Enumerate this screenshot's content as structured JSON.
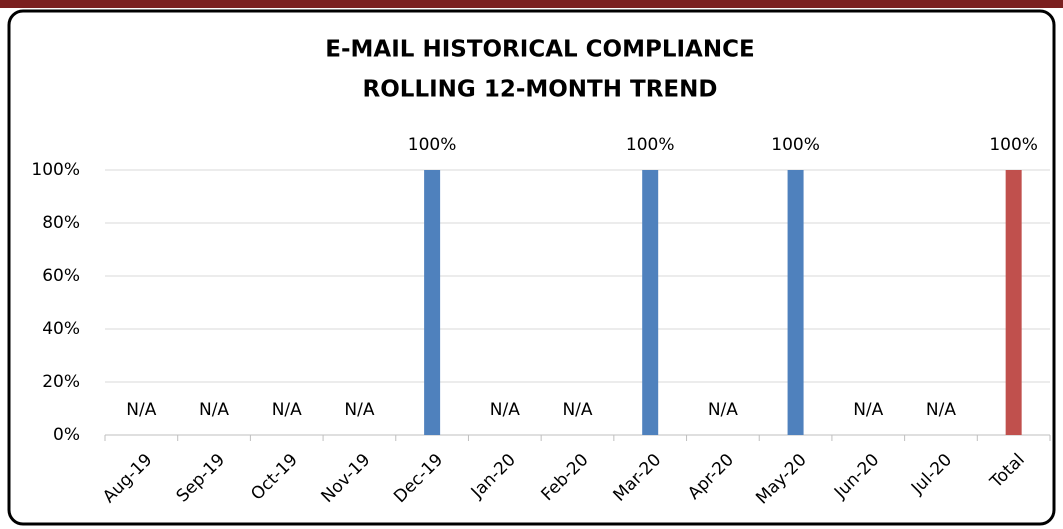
{
  "chart_data": {
    "type": "bar",
    "title": "E-MAIL HISTORICAL COMPLIANCE",
    "subtitle": "ROLLING 12-MONTH TREND",
    "categories": [
      "Aug-19",
      "Sep-19",
      "Oct-19",
      "Nov-19",
      "Dec-19",
      "Jan-20",
      "Feb-20",
      "Mar-20",
      "Apr-20",
      "May-20",
      "Jun-20",
      "Jul-20",
      "Total"
    ],
    "values": [
      null,
      null,
      null,
      null,
      100,
      null,
      null,
      100,
      null,
      100,
      null,
      null,
      100
    ],
    "value_labels": [
      "N/A",
      "N/A",
      "N/A",
      "N/A",
      "100%",
      "N/A",
      "N/A",
      "100%",
      "N/A",
      "100%",
      "N/A",
      "N/A",
      "100%"
    ],
    "colors": [
      "#4f81bd",
      "#4f81bd",
      "#4f81bd",
      "#4f81bd",
      "#4f81bd",
      "#4f81bd",
      "#4f81bd",
      "#4f81bd",
      "#4f81bd",
      "#4f81bd",
      "#4f81bd",
      "#4f81bd",
      "#c0504d"
    ],
    "ylim": [
      0,
      100
    ],
    "yticks": [
      {
        "value": 0,
        "label": "0%"
      },
      {
        "value": 20,
        "label": "20%"
      },
      {
        "value": 40,
        "label": "40%"
      },
      {
        "value": 60,
        "label": "60%"
      },
      {
        "value": 80,
        "label": "80%"
      },
      {
        "value": 100,
        "label": "100%"
      }
    ],
    "grid": true
  }
}
